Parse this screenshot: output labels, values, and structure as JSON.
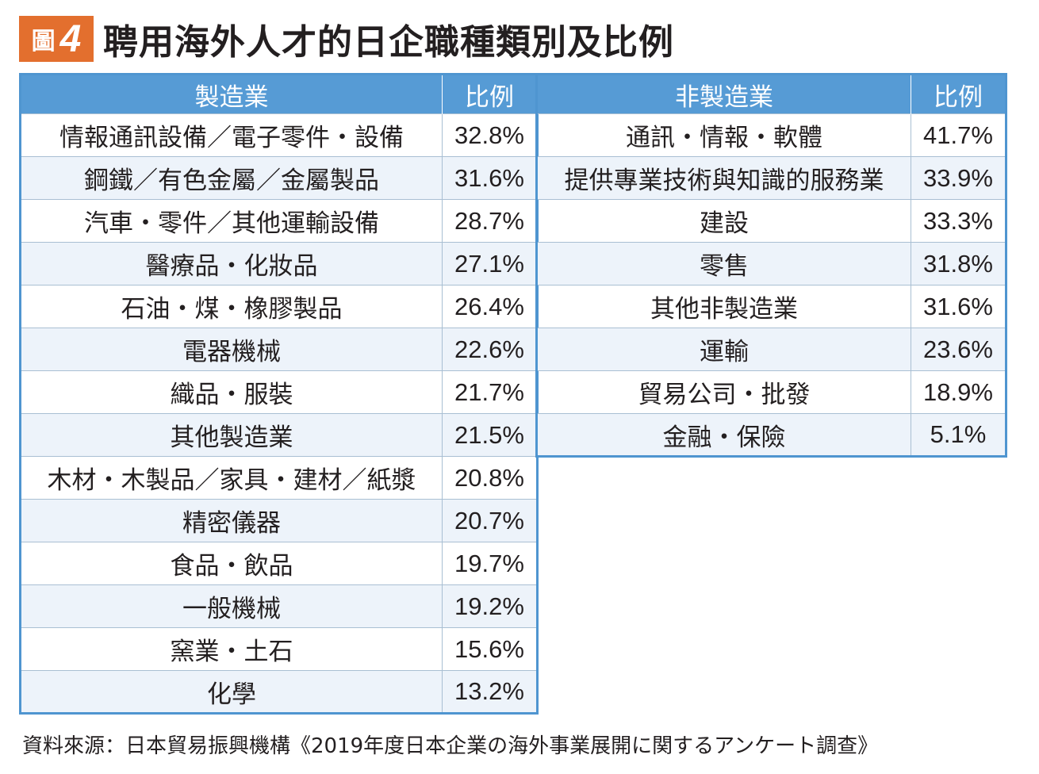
{
  "title": {
    "badge_word": "圖",
    "badge_number": "4",
    "text": "聘用海外人才的日企職種類別及比例"
  },
  "colors": {
    "badge": "#e36f2e",
    "header_blue": "#569bd5",
    "border_blue": "#4f95d0"
  },
  "manufacturing": {
    "header_category": "製造業",
    "header_ratio": "比例",
    "rows": [
      {
        "category": "情報通訊設備／電子零件・設備",
        "ratio": "32.8%"
      },
      {
        "category": "鋼鐵／有色金屬／金屬製品",
        "ratio": "31.6%"
      },
      {
        "category": "汽車・零件／其他運輸設備",
        "ratio": "28.7%"
      },
      {
        "category": "醫療品・化妝品",
        "ratio": "27.1%"
      },
      {
        "category": "石油・煤・橡膠製品",
        "ratio": "26.4%"
      },
      {
        "category": "電器機械",
        "ratio": "22.6%"
      },
      {
        "category": "織品・服裝",
        "ratio": "21.7%"
      },
      {
        "category": "其他製造業",
        "ratio": "21.5%"
      },
      {
        "category": "木材・木製品／家具・建材／紙漿",
        "ratio": "20.8%"
      },
      {
        "category": "精密儀器",
        "ratio": "20.7%"
      },
      {
        "category": "食品・飲品",
        "ratio": "19.7%"
      },
      {
        "category": "一般機械",
        "ratio": "19.2%"
      },
      {
        "category": "窯業・土石",
        "ratio": "15.6%"
      },
      {
        "category": "化學",
        "ratio": "13.2%"
      }
    ]
  },
  "non_manufacturing": {
    "header_category": "非製造業",
    "header_ratio": "比例",
    "rows": [
      {
        "category": "通訊・情報・軟體",
        "ratio": "41.7%"
      },
      {
        "category": "提供專業技術與知識的服務業",
        "ratio": "33.9%"
      },
      {
        "category": "建設",
        "ratio": "33.3%"
      },
      {
        "category": "零售",
        "ratio": "31.8%"
      },
      {
        "category": "其他非製造業",
        "ratio": "31.6%"
      },
      {
        "category": "運輸",
        "ratio": "23.6%"
      },
      {
        "category": "貿易公司・批發",
        "ratio": "18.9%"
      },
      {
        "category": "金融・保險",
        "ratio": "5.1%"
      }
    ]
  },
  "source": "資料來源：日本貿易振興機構《2019年度日本企業の海外事業展開に関するアンケート調查》"
}
